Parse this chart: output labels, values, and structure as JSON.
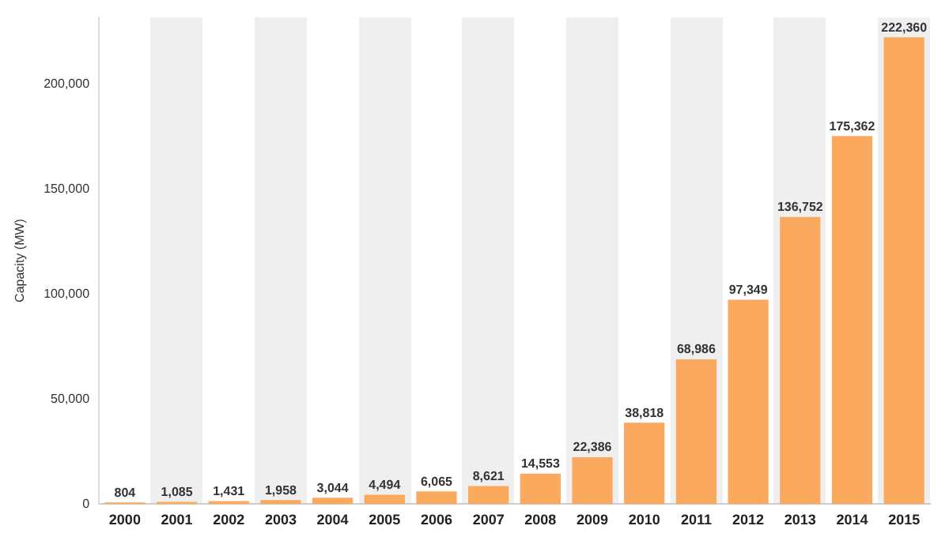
{
  "chart_data": {
    "type": "bar",
    "ylabel": "Capacity (MW)",
    "categories": [
      "2000",
      "2001",
      "2002",
      "2003",
      "2004",
      "2005",
      "2006",
      "2007",
      "2008",
      "2009",
      "2010",
      "2011",
      "2012",
      "2013",
      "2014",
      "2015"
    ],
    "values": [
      804,
      1085,
      1431,
      1958,
      3044,
      4494,
      6065,
      8621,
      14553,
      22386,
      38818,
      68986,
      97349,
      136752,
      175362,
      222360
    ],
    "value_labels": [
      "804",
      "1,085",
      "1,431",
      "1,958",
      "3,044",
      "4,494",
      "6,065",
      "8,621",
      "14,553",
      "22,386",
      "38,818",
      "68,986",
      "97,349",
      "136,752",
      "175,362",
      "222,360"
    ],
    "color": "#fba95f",
    "ylim": [
      0,
      232000
    ],
    "yticks": [
      0,
      {
        "value": 50000,
        "label": "50,000"
      },
      {
        "value": 100000,
        "label": "100,000"
      },
      {
        "value": 150000,
        "label": "150,000"
      },
      {
        "value": 200000,
        "label": "200,000"
      }
    ],
    "grid": false,
    "legend": false
  }
}
